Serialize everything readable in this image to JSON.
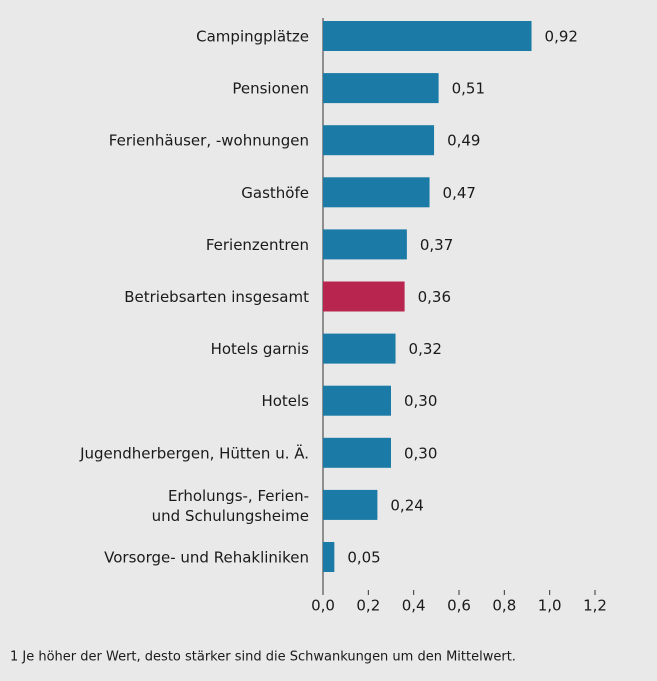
{
  "chart_data": {
    "type": "barh",
    "categories": [
      "Campingplätze",
      "Pensionen",
      "Ferienhäuser, -wohnungen",
      "Gasthöfe",
      "Ferienzentren",
      "Betriebsarten insgesamt",
      "Hotels garnis",
      "Hotels",
      "Jugendherbergen, Hütten u. Ä.",
      "Erholungs-, Ferien-\nund Schulungsheime",
      "Vorsorge- und Rehakliniken"
    ],
    "values": [
      0.92,
      0.51,
      0.49,
      0.47,
      0.37,
      0.36,
      0.32,
      0.3,
      0.3,
      0.24,
      0.05
    ],
    "value_labels": [
      "0,92",
      "0,51",
      "0,49",
      "0,47",
      "0,37",
      "0,36",
      "0,32",
      "0,30",
      "0,30",
      "0,24",
      "0,05"
    ],
    "colors": [
      "#1b7ba6",
      "#1b7ba6",
      "#1b7ba6",
      "#1b7ba6",
      "#1b7ba6",
      "#b82650",
      "#1b7ba6",
      "#1b7ba6",
      "#1b7ba6",
      "#1b7ba6",
      "#1b7ba6"
    ],
    "xlim": [
      0,
      1.2
    ],
    "xticks": [
      {
        "value": 0,
        "label": "0,0"
      },
      {
        "value": 0.2,
        "label": "0,2"
      },
      {
        "value": 0.4,
        "label": "0,4"
      },
      {
        "value": 0.6,
        "label": "0,6"
      },
      {
        "value": 0.8,
        "label": "0,8"
      },
      {
        "value": 1.0,
        "label": "1,0"
      },
      {
        "value": 1.2,
        "label": "1,2"
      }
    ],
    "footnote": "1 Je höher der Wert, desto stärker sind die Schwankungen um den Mittelwert."
  }
}
